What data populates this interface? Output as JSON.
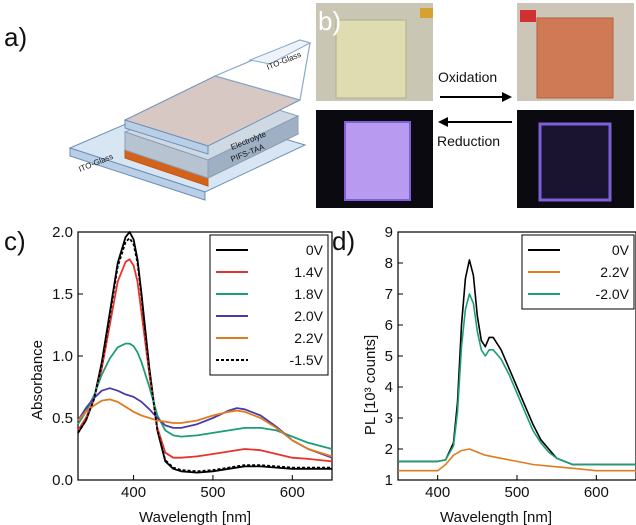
{
  "panels": {
    "a": "a)",
    "b": "b)",
    "c": "c)",
    "d": "d)"
  },
  "device": {
    "top_glass": "ITO-Glass",
    "bottom_glass": "ITO-Glass",
    "electrolyte": "Electrolyte",
    "polymer": "PIFS-TAA"
  },
  "photos": {
    "oxidation": "Oxidation",
    "reduction": "Reduction"
  },
  "chart_data": [
    {
      "type": "line",
      "panel": "c",
      "xlabel": "Wavelength [nm]",
      "ylabel": "Absorbance",
      "xlim": [
        330,
        650
      ],
      "ylim": [
        0,
        2.0
      ],
      "xticks": [
        400,
        500,
        600
      ],
      "yticks": [
        0.0,
        0.5,
        1.0,
        1.5,
        2.0
      ],
      "grid": false,
      "legend": "top-right",
      "series": [
        {
          "name": "0V",
          "color": "#000000",
          "dash": false,
          "x": [
            330,
            340,
            350,
            360,
            370,
            380,
            390,
            395,
            400,
            405,
            410,
            420,
            430,
            440,
            450,
            460,
            480,
            500,
            520,
            540,
            560,
            580,
            600,
            620,
            650
          ],
          "y": [
            0.38,
            0.48,
            0.65,
            0.95,
            1.35,
            1.75,
            1.96,
            2.0,
            1.94,
            1.78,
            1.5,
            0.9,
            0.4,
            0.15,
            0.09,
            0.07,
            0.06,
            0.07,
            0.09,
            0.11,
            0.11,
            0.1,
            0.09,
            0.09,
            0.09
          ]
        },
        {
          "name": "1.4V",
          "color": "#e8322c",
          "dash": false,
          "x": [
            330,
            340,
            350,
            360,
            370,
            380,
            390,
            395,
            400,
            405,
            410,
            420,
            430,
            440,
            450,
            460,
            480,
            500,
            520,
            540,
            560,
            580,
            600,
            620,
            650
          ],
          "y": [
            0.4,
            0.5,
            0.65,
            0.9,
            1.25,
            1.6,
            1.76,
            1.78,
            1.73,
            1.6,
            1.35,
            0.85,
            0.42,
            0.22,
            0.18,
            0.18,
            0.19,
            0.21,
            0.23,
            0.25,
            0.24,
            0.21,
            0.18,
            0.17,
            0.15
          ]
        },
        {
          "name": "1.8V",
          "color": "#1a9e78",
          "dash": false,
          "x": [
            330,
            340,
            350,
            360,
            370,
            380,
            390,
            395,
            400,
            405,
            410,
            420,
            430,
            440,
            450,
            460,
            480,
            500,
            520,
            540,
            560,
            580,
            600,
            620,
            650
          ],
          "y": [
            0.45,
            0.55,
            0.68,
            0.85,
            0.98,
            1.07,
            1.1,
            1.1,
            1.08,
            1.03,
            0.95,
            0.75,
            0.52,
            0.4,
            0.36,
            0.35,
            0.36,
            0.38,
            0.4,
            0.42,
            0.42,
            0.4,
            0.35,
            0.3,
            0.25
          ]
        },
        {
          "name": "2.0V",
          "color": "#4c3aa8",
          "dash": false,
          "x": [
            330,
            340,
            350,
            360,
            370,
            380,
            390,
            400,
            410,
            420,
            430,
            440,
            450,
            460,
            480,
            500,
            520,
            530,
            540,
            560,
            580,
            600,
            620,
            650
          ],
          "y": [
            0.48,
            0.58,
            0.66,
            0.72,
            0.74,
            0.72,
            0.69,
            0.67,
            0.63,
            0.57,
            0.5,
            0.44,
            0.42,
            0.42,
            0.45,
            0.5,
            0.56,
            0.58,
            0.57,
            0.52,
            0.43,
            0.32,
            0.25,
            0.18
          ]
        },
        {
          "name": "2.2V",
          "color": "#e07b1f",
          "dash": false,
          "x": [
            330,
            340,
            350,
            360,
            370,
            380,
            390,
            400,
            410,
            420,
            430,
            440,
            450,
            460,
            480,
            500,
            520,
            530,
            540,
            560,
            580,
            600,
            620,
            650
          ],
          "y": [
            0.48,
            0.55,
            0.6,
            0.64,
            0.65,
            0.63,
            0.59,
            0.55,
            0.52,
            0.5,
            0.48,
            0.47,
            0.46,
            0.46,
            0.48,
            0.52,
            0.55,
            0.56,
            0.55,
            0.5,
            0.42,
            0.32,
            0.25,
            0.19
          ]
        },
        {
          "name": "-1.5V",
          "color": "#000000",
          "dash": true,
          "x": [
            330,
            340,
            350,
            360,
            370,
            380,
            390,
            395,
            400,
            405,
            410,
            420,
            430,
            440,
            450,
            460,
            480,
            500,
            520,
            540,
            560,
            580,
            600,
            620,
            650
          ],
          "y": [
            0.38,
            0.48,
            0.65,
            0.93,
            1.32,
            1.72,
            1.92,
            1.95,
            1.9,
            1.75,
            1.48,
            0.88,
            0.4,
            0.16,
            0.1,
            0.08,
            0.07,
            0.08,
            0.1,
            0.12,
            0.12,
            0.11,
            0.1,
            0.1,
            0.1
          ]
        }
      ]
    },
    {
      "type": "line",
      "panel": "d",
      "xlabel": "Wavelength [nm]",
      "ylabel": "PL [10³ counts]",
      "xlim": [
        350,
        650
      ],
      "ylim": [
        1,
        9
      ],
      "xticks": [
        400,
        500,
        600
      ],
      "yticks": [
        1,
        2,
        3,
        4,
        5,
        6,
        7,
        8,
        9
      ],
      "grid": false,
      "legend": "top-right",
      "series": [
        {
          "name": "0V",
          "color": "#000000",
          "x": [
            350,
            380,
            400,
            410,
            420,
            425,
            430,
            435,
            440,
            445,
            450,
            455,
            460,
            465,
            470,
            480,
            490,
            500,
            510,
            520,
            530,
            540,
            550,
            560,
            570,
            580,
            600,
            620,
            650
          ],
          "y": [
            1.6,
            1.6,
            1.6,
            1.65,
            2.2,
            3.5,
            6.0,
            7.5,
            8.1,
            7.6,
            6.3,
            5.5,
            5.3,
            5.6,
            5.6,
            5.2,
            4.6,
            4.0,
            3.4,
            2.8,
            2.3,
            2.0,
            1.7,
            1.6,
            1.5,
            1.5,
            1.5,
            1.5,
            1.5
          ]
        },
        {
          "name": "2.2V",
          "color": "#e07b1f",
          "x": [
            350,
            400,
            410,
            420,
            430,
            440,
            450,
            460,
            480,
            500,
            520,
            540,
            560,
            580,
            600,
            650
          ],
          "y": [
            1.3,
            1.3,
            1.5,
            1.8,
            1.95,
            2.0,
            1.9,
            1.8,
            1.7,
            1.6,
            1.5,
            1.45,
            1.4,
            1.35,
            1.3,
            1.3
          ]
        },
        {
          "name": "-2.0V",
          "color": "#1a9e78",
          "x": [
            350,
            380,
            400,
            410,
            420,
            425,
            430,
            435,
            440,
            445,
            450,
            455,
            460,
            465,
            470,
            480,
            490,
            500,
            510,
            520,
            530,
            540,
            550,
            560,
            570,
            580,
            600,
            620,
            650
          ],
          "y": [
            1.6,
            1.6,
            1.6,
            1.65,
            2.1,
            3.2,
            5.3,
            6.5,
            7.0,
            6.7,
            5.8,
            5.2,
            5.0,
            5.2,
            5.2,
            4.9,
            4.4,
            3.8,
            3.2,
            2.6,
            2.2,
            1.9,
            1.7,
            1.6,
            1.5,
            1.5,
            1.5,
            1.5,
            1.5
          ]
        }
      ]
    }
  ]
}
